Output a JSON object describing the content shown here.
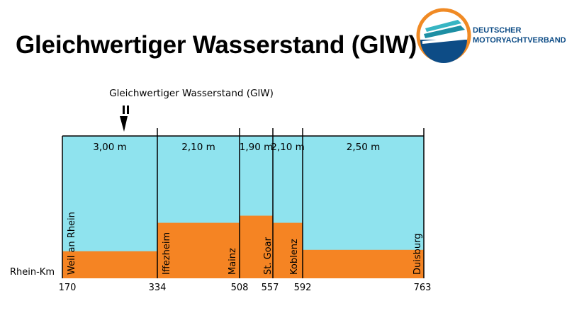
{
  "title": "Gleichwertiger Wasserstand (GlW)",
  "logo": {
    "line1": "DEUTSCHER",
    "line2": "MOTORYACHTVERBAND"
  },
  "diagram": {
    "indicator_label": "Gleichwertiger Wasserstand (GlW)",
    "axis_label": "Rhein-Km",
    "km_marks": [
      "170",
      "334",
      "508",
      "557",
      "592",
      "763"
    ],
    "sections": [
      {
        "depth": "3,00 m",
        "from_km": 170,
        "to_km": 334,
        "level": 0.19
      },
      {
        "depth": "2,10 m",
        "from_km": 334,
        "to_km": 508,
        "level": 0.39
      },
      {
        "depth": "1,90 m",
        "from_km": 508,
        "to_km": 557,
        "level": 0.44
      },
      {
        "depth": "2,10 m",
        "from_km": 557,
        "to_km": 592,
        "level": 0.39
      },
      {
        "depth": "2,50 m",
        "from_km": 592,
        "to_km": 763,
        "level": 0.2
      }
    ],
    "places": [
      "Weil an Rhein",
      "Iffezheim",
      "Mainz",
      "St. Goar",
      "Koblenz",
      "Duisburg"
    ],
    "colors": {
      "water": "#8fe3ee",
      "riverbed": "#f58423",
      "lines": "#000000"
    }
  }
}
